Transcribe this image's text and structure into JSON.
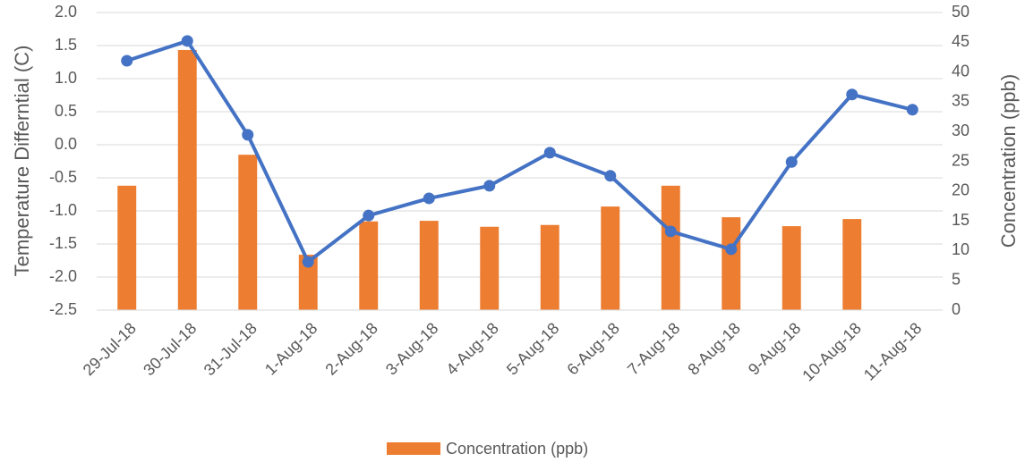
{
  "chart_data": {
    "type": "bar",
    "ylabel": "Temperature Differntial (C)",
    "y2label": "Concentration (ppb)",
    "categories": [
      "29-Jul-18",
      "30-Jul-18",
      "31-Jul-18",
      "1-Aug-18",
      "2-Aug-18",
      "3-Aug-18",
      "4-Aug-18",
      "5-Aug-18",
      "6-Aug-18",
      "7-Aug-18",
      "8-Aug-18",
      "9-Aug-18",
      "10-Aug-18",
      "11-Aug-18"
    ],
    "series": [
      {
        "name": "Concentration (ppb)",
        "type": "bar",
        "axis": "y2",
        "color": "#ed7d31",
        "values": [
          20.9,
          43.7,
          26.1,
          9.3,
          14.9,
          15.0,
          14.0,
          14.3,
          17.4,
          20.9,
          15.6,
          14.1,
          15.3,
          null
        ]
      },
      {
        "type": "line",
        "color": "#4472c4",
        "values": [
          1.27,
          1.57,
          0.15,
          -1.77,
          -1.07,
          -0.81,
          -0.62,
          -0.12,
          -0.47,
          -1.31,
          -1.58,
          -0.26,
          0.76,
          0.53
        ]
      }
    ],
    "ylim": [
      -2.5,
      2.0
    ],
    "yticks": [
      {
        "value": -2.5,
        "label": "-2.5"
      },
      {
        "value": -2.0,
        "label": "-2.0"
      },
      {
        "value": -1.5,
        "label": "-1.5"
      },
      {
        "value": -1.0,
        "label": "-1.0"
      },
      {
        "value": -0.5,
        "label": "-0.5"
      },
      {
        "value": 0,
        "label": "0.0"
      },
      {
        "value": 0.5,
        "label": "0.5"
      },
      {
        "value": 1.0,
        "label": "1.0"
      },
      {
        "value": 1.5,
        "label": "1.5"
      },
      {
        "value": 2.0,
        "label": "2.0"
      }
    ],
    "y2lim": [
      0,
      50
    ],
    "y2ticks": [
      0,
      5,
      10,
      15,
      20,
      25,
      30,
      35,
      40,
      45,
      50
    ],
    "grid": true,
    "legend": "bottom"
  }
}
